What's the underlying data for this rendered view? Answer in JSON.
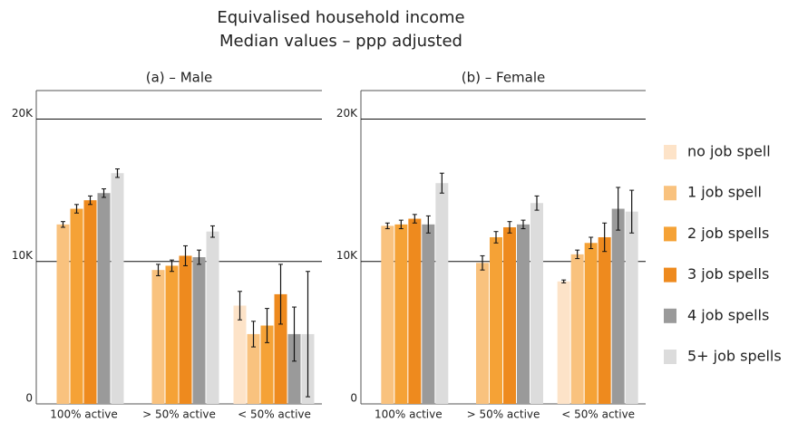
{
  "title": "Equivalised household income",
  "subtitle": "Median values – ppp adjusted",
  "chart_data": [
    {
      "type": "bar",
      "title": "(a) – Male",
      "categories": [
        "100% active",
        "> 50% active",
        "< 50% active"
      ],
      "ylim": [
        0,
        22000
      ],
      "yticks": [
        0,
        {
          "value": 10000,
          "label": "10K"
        },
        {
          "value": 20000,
          "label": "20K"
        }
      ],
      "grid": true,
      "series": [
        {
          "name": "no job spell",
          "color": "#fde3c8",
          "values": [
            null,
            null,
            6900
          ],
          "errors": [
            null,
            null,
            1000.0
          ]
        },
        {
          "name": "1 job spell",
          "color": "#f9c27e",
          "values": [
            12600,
            9400,
            4900
          ],
          "errors": [
            200,
            400,
            900
          ]
        },
        {
          "name": "2 job spells",
          "color": "#f5a236",
          "values": [
            13700,
            9700,
            5500
          ],
          "errors": [
            300,
            400,
            1200
          ]
        },
        {
          "name": "3 job spells",
          "color": "#ee8a1e",
          "values": [
            14300,
            10400,
            7700
          ],
          "errors": [
            300,
            700,
            2100
          ]
        },
        {
          "name": "4 job spells",
          "color": "#9a9a9a",
          "values": [
            14800,
            10300,
            4900
          ],
          "errors": [
            300,
            500,
            1900
          ]
        },
        {
          "name": "5+ job spells",
          "color": "#dcdcdc",
          "values": [
            16200,
            12100,
            4900
          ],
          "errors": [
            300,
            400,
            4400
          ]
        }
      ]
    },
    {
      "type": "bar",
      "title": "(b) – Female",
      "categories": [
        "100% active",
        "> 50% active",
        "< 50% active"
      ],
      "ylim": [
        0,
        22000
      ],
      "yticks": [
        0,
        {
          "value": 10000,
          "label": "10K"
        },
        {
          "value": 20000,
          "label": "20K"
        }
      ],
      "grid": true,
      "series": [
        {
          "name": "no job spell",
          "color": "#fde3c8",
          "values": [
            null,
            null,
            8600
          ],
          "errors": [
            null,
            null,
            100
          ]
        },
        {
          "name": "1 job spell",
          "color": "#f9c27e",
          "values": [
            12500,
            9900,
            10500
          ],
          "errors": [
            200,
            500,
            300
          ]
        },
        {
          "name": "2 job spells",
          "color": "#f5a236",
          "values": [
            12600,
            11700,
            11300
          ],
          "errors": [
            300,
            400,
            400
          ]
        },
        {
          "name": "3 job spells",
          "color": "#ee8a1e",
          "values": [
            13000,
            12400,
            11700
          ],
          "errors": [
            300,
            400,
            1000
          ]
        },
        {
          "name": "4 job spells",
          "color": "#9a9a9a",
          "values": [
            12600,
            12600,
            13700
          ],
          "errors": [
            600,
            300,
            1500
          ]
        },
        {
          "name": "5+ job spells",
          "color": "#dcdcdc",
          "values": [
            15500,
            14100,
            13500
          ],
          "errors": [
            700,
            500,
            1500
          ]
        }
      ]
    }
  ]
}
